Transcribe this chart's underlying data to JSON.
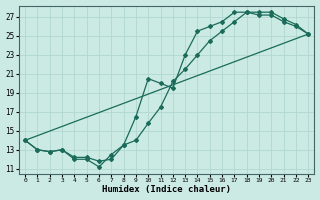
{
  "xlabel": "Humidex (Indice chaleur)",
  "bg_color": "#cceae4",
  "grid_color": "#b0d8d0",
  "line_color": "#1a6b5a",
  "xlim": [
    -0.5,
    23.5
  ],
  "ylim": [
    10.5,
    28.2
  ],
  "xticks": [
    0,
    1,
    2,
    3,
    4,
    5,
    6,
    7,
    8,
    9,
    10,
    11,
    12,
    13,
    14,
    15,
    16,
    17,
    18,
    19,
    20,
    21,
    22,
    23
  ],
  "yticks": [
    11,
    13,
    15,
    17,
    19,
    21,
    23,
    25,
    27
  ],
  "series1_x": [
    0,
    1,
    2,
    3,
    4,
    5,
    6,
    7,
    8,
    9,
    10,
    11,
    12,
    13,
    14,
    15,
    16,
    17,
    18,
    19,
    20,
    21,
    22,
    23
  ],
  "series1_y": [
    14.0,
    13.0,
    12.8,
    13.0,
    12.0,
    12.0,
    11.2,
    12.5,
    13.5,
    16.5,
    20.5,
    20.0,
    19.5,
    23.0,
    25.5,
    26.0,
    26.5,
    27.5,
    27.5,
    27.2,
    27.2,
    26.5,
    26.0,
    25.2
  ],
  "series2_x": [
    0,
    1,
    2,
    3,
    4,
    5,
    6,
    7,
    8,
    9,
    10,
    11,
    12,
    13,
    14,
    15,
    16,
    17,
    18,
    19,
    20,
    21,
    22,
    23
  ],
  "series2_y": [
    14.0,
    13.0,
    12.8,
    13.0,
    12.2,
    12.2,
    11.8,
    12.0,
    13.5,
    14.0,
    15.8,
    17.5,
    20.2,
    21.5,
    23.0,
    24.5,
    25.5,
    26.5,
    27.5,
    27.5,
    27.5,
    26.8,
    26.2,
    25.2
  ],
  "series3_x": [
    0,
    23
  ],
  "series3_y": [
    14.0,
    25.2
  ]
}
